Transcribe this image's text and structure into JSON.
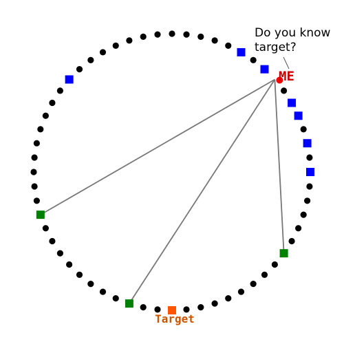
{
  "question_line1": "Do you know",
  "question_line2": "target?",
  "me_label": "ME",
  "target_label": "Target",
  "colors": {
    "background": "#ffffff",
    "ring_dot": "#000000",
    "me": "#ff0000",
    "me_text": "#cc0000",
    "blue_node": "#0000ff",
    "green_node": "#008000",
    "target": "#ff5500",
    "target_text": "#cc5500",
    "edge": "#777777",
    "pointer": "#555555"
  },
  "ring": {
    "dot_count": 60
  },
  "nodes": {
    "me": {
      "ring_index": 8,
      "shape": "circle"
    },
    "blue": [
      5,
      7,
      10,
      11,
      13,
      15,
      52
    ],
    "green": [
      21,
      33,
      42
    ],
    "target": {
      "ring_index": 30
    }
  },
  "edges_from_me": [
    21,
    33,
    42
  ]
}
